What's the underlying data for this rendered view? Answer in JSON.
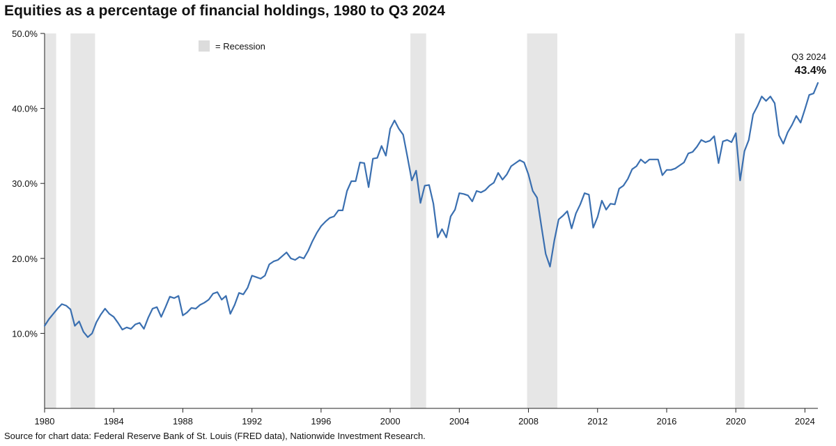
{
  "chart_data": {
    "type": "line",
    "title": "Equities as a percentage of financial holdings, 1980 to Q3 2024",
    "source": "Source for chart data: Federal Reserve Bank of St. Louis (FRED data), Nationwide Investment Research.",
    "xlabel": "",
    "ylabel": "",
    "xlim": [
      1980,
      2024.75
    ],
    "ylim": [
      0,
      50
    ],
    "x_ticks": [
      1980,
      1984,
      1988,
      1992,
      1996,
      2000,
      2004,
      2008,
      2012,
      2016,
      2020,
      2024
    ],
    "x_tick_labels": [
      "1980",
      "1984",
      "1988",
      "1992",
      "1996",
      "2000",
      "2004",
      "2008",
      "2012",
      "2016",
      "2020",
      "2024"
    ],
    "y_ticks": [
      10,
      20,
      30,
      40,
      50
    ],
    "y_tick_labels": [
      "10.0%",
      "20.0%",
      "30.0%",
      "40.0%",
      "50.0%"
    ],
    "grid": false,
    "legend": {
      "label": "= Recession",
      "color": "#dcdcdc",
      "placement": "top-left"
    },
    "line_color": "#3a6fb0",
    "recession_color": "#e6e6e6",
    "recessions": [
      [
        1980.0,
        1980.67
      ],
      [
        1981.5,
        1982.92
      ],
      [
        2001.17,
        2002.08
      ],
      [
        2007.92,
        2009.67
      ],
      [
        2019.96,
        2020.5
      ]
    ],
    "annotation": {
      "label": "Q3 2024",
      "value_label": "43.4%",
      "x": 2024.75,
      "y": 43.4
    },
    "series": [
      {
        "name": "Equities as a percentage of financial holdings",
        "x": [
          1980.0,
          1980.25,
          1980.5,
          1980.75,
          1981.0,
          1981.25,
          1981.5,
          1981.75,
          1982.0,
          1982.25,
          1982.5,
          1982.75,
          1983.0,
          1983.25,
          1983.5,
          1983.75,
          1984.0,
          1984.25,
          1984.5,
          1984.75,
          1985.0,
          1985.25,
          1985.5,
          1985.75,
          1986.0,
          1986.25,
          1986.5,
          1986.75,
          1987.0,
          1987.25,
          1987.5,
          1987.75,
          1988.0,
          1988.25,
          1988.5,
          1988.75,
          1989.0,
          1989.25,
          1989.5,
          1989.75,
          1990.0,
          1990.25,
          1990.5,
          1990.75,
          1991.0,
          1991.25,
          1991.5,
          1991.75,
          1992.0,
          1992.25,
          1992.5,
          1992.75,
          1993.0,
          1993.25,
          1993.5,
          1993.75,
          1994.0,
          1994.25,
          1994.5,
          1994.75,
          1995.0,
          1995.25,
          1995.5,
          1995.75,
          1996.0,
          1996.25,
          1996.5,
          1996.75,
          1997.0,
          1997.25,
          1997.5,
          1997.75,
          1998.0,
          1998.25,
          1998.5,
          1998.75,
          1999.0,
          1999.25,
          1999.5,
          1999.75,
          2000.0,
          2000.25,
          2000.5,
          2000.75,
          2001.0,
          2001.25,
          2001.5,
          2001.75,
          2002.0,
          2002.25,
          2002.5,
          2002.75,
          2003.0,
          2003.25,
          2003.5,
          2003.75,
          2004.0,
          2004.25,
          2004.5,
          2004.75,
          2005.0,
          2005.25,
          2005.5,
          2005.75,
          2006.0,
          2006.25,
          2006.5,
          2006.75,
          2007.0,
          2007.25,
          2007.5,
          2007.75,
          2008.0,
          2008.25,
          2008.5,
          2008.75,
          2009.0,
          2009.25,
          2009.5,
          2009.75,
          2010.0,
          2010.25,
          2010.5,
          2010.75,
          2011.0,
          2011.25,
          2011.5,
          2011.75,
          2012.0,
          2012.25,
          2012.5,
          2012.75,
          2013.0,
          2013.25,
          2013.5,
          2013.75,
          2014.0,
          2014.25,
          2014.5,
          2014.75,
          2015.0,
          2015.25,
          2015.5,
          2015.75,
          2016.0,
          2016.25,
          2016.5,
          2016.75,
          2017.0,
          2017.25,
          2017.5,
          2017.75,
          2018.0,
          2018.25,
          2018.5,
          2018.75,
          2019.0,
          2019.25,
          2019.5,
          2019.75,
          2020.0,
          2020.25,
          2020.5,
          2020.75,
          2021.0,
          2021.25,
          2021.5,
          2021.75,
          2022.0,
          2022.25,
          2022.5,
          2022.75,
          2023.0,
          2023.25,
          2023.5,
          2023.75,
          2024.0,
          2024.25,
          2024.5,
          2024.75
        ],
        "values": [
          11.0,
          11.9,
          12.6,
          13.3,
          13.9,
          13.7,
          13.2,
          11.0,
          11.6,
          10.2,
          9.5,
          10.0,
          11.5,
          12.5,
          13.3,
          12.6,
          12.2,
          11.4,
          10.5,
          10.8,
          10.6,
          11.2,
          11.4,
          10.6,
          12.1,
          13.3,
          13.5,
          12.2,
          13.5,
          14.9,
          14.7,
          15.0,
          12.4,
          12.8,
          13.4,
          13.3,
          13.8,
          14.1,
          14.5,
          15.3,
          15.5,
          14.5,
          15.0,
          12.6,
          13.8,
          15.4,
          15.2,
          16.1,
          17.7,
          17.5,
          17.3,
          17.7,
          19.2,
          19.6,
          19.8,
          20.3,
          20.8,
          20.0,
          19.8,
          20.2,
          20.0,
          21.0,
          22.3,
          23.4,
          24.3,
          24.9,
          25.4,
          25.6,
          26.4,
          26.4,
          29.0,
          30.3,
          30.3,
          32.8,
          32.7,
          29.5,
          33.3,
          33.4,
          35.0,
          33.7,
          37.3,
          38.4,
          37.3,
          36.5,
          33.5,
          30.4,
          31.7,
          27.4,
          29.7,
          29.8,
          27.3,
          22.8,
          23.9,
          22.8,
          25.6,
          26.5,
          28.7,
          28.6,
          28.4,
          27.6,
          29.0,
          28.8,
          29.1,
          29.7,
          30.1,
          31.4,
          30.5,
          31.2,
          32.3,
          32.7,
          33.1,
          32.8,
          31.2,
          29.0,
          28.1,
          24.3,
          20.6,
          18.9,
          22.4,
          25.2,
          25.7,
          26.3,
          24.0,
          26.0,
          27.2,
          28.7,
          28.5,
          24.1,
          25.5,
          27.7,
          26.5,
          27.3,
          27.2,
          29.3,
          29.7,
          30.6,
          31.9,
          32.3,
          33.2,
          32.7,
          33.2,
          33.2,
          33.2,
          31.1,
          31.8,
          31.8,
          32.0,
          32.4,
          32.8,
          34.0,
          34.2,
          34.9,
          35.8,
          35.5,
          35.7,
          36.3,
          32.7,
          35.6,
          35.8,
          35.5,
          36.7,
          30.4,
          34.3,
          35.8,
          39.2,
          40.3,
          41.6,
          41.0,
          41.6,
          40.7,
          36.4,
          35.3,
          36.8,
          37.8,
          39.0,
          38.1,
          39.9,
          41.8,
          42.0,
          43.4
        ]
      }
    ]
  }
}
